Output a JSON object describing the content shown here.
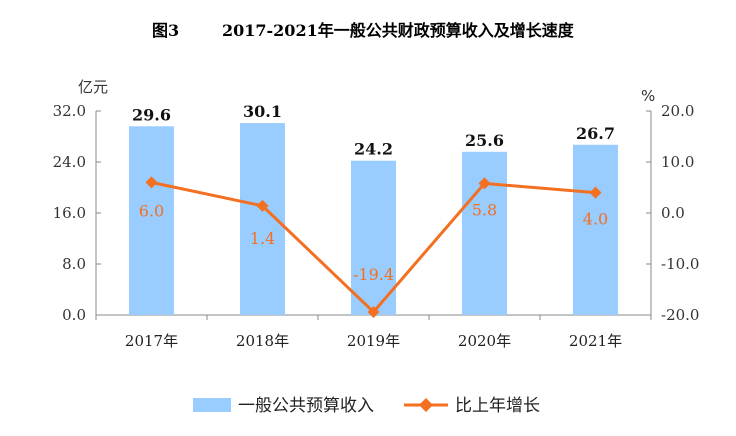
{
  "chart_data": {
    "type": "bar",
    "title_prefix": "图3",
    "title": "2017-2021年一般公共财政预算收入及增长速度",
    "categories": [
      "2017年",
      "2018年",
      "2019年",
      "2020年",
      "2021年"
    ],
    "y_left": {
      "unit": "亿元",
      "range": [
        0,
        32
      ],
      "ticks": [
        "0.0",
        "8.0",
        "16.0",
        "24.0",
        "32.0"
      ]
    },
    "y_right": {
      "unit": "%",
      "range": [
        -20,
        20
      ],
      "ticks": [
        "-20.0",
        "-10.0",
        "0.0",
        "10.0",
        "20.0"
      ]
    },
    "series": [
      {
        "name": "一般公共预算收入",
        "type": "bar",
        "axis": "left",
        "color": "#99ccff",
        "values": [
          29.6,
          30.1,
          24.2,
          25.6,
          26.7
        ],
        "labels": [
          "29.6",
          "30.1",
          "24.2",
          "25.6",
          "26.7"
        ]
      },
      {
        "name": "比上年增长",
        "type": "line",
        "axis": "right",
        "color": "#f36f21",
        "marker": "diamond",
        "values": [
          6.0,
          1.4,
          -19.4,
          5.8,
          4.0
        ],
        "labels": [
          "6.0",
          "1.4",
          "-19.4",
          "5.8",
          "4.0"
        ]
      }
    ],
    "grid": false,
    "legend": "bottom"
  }
}
